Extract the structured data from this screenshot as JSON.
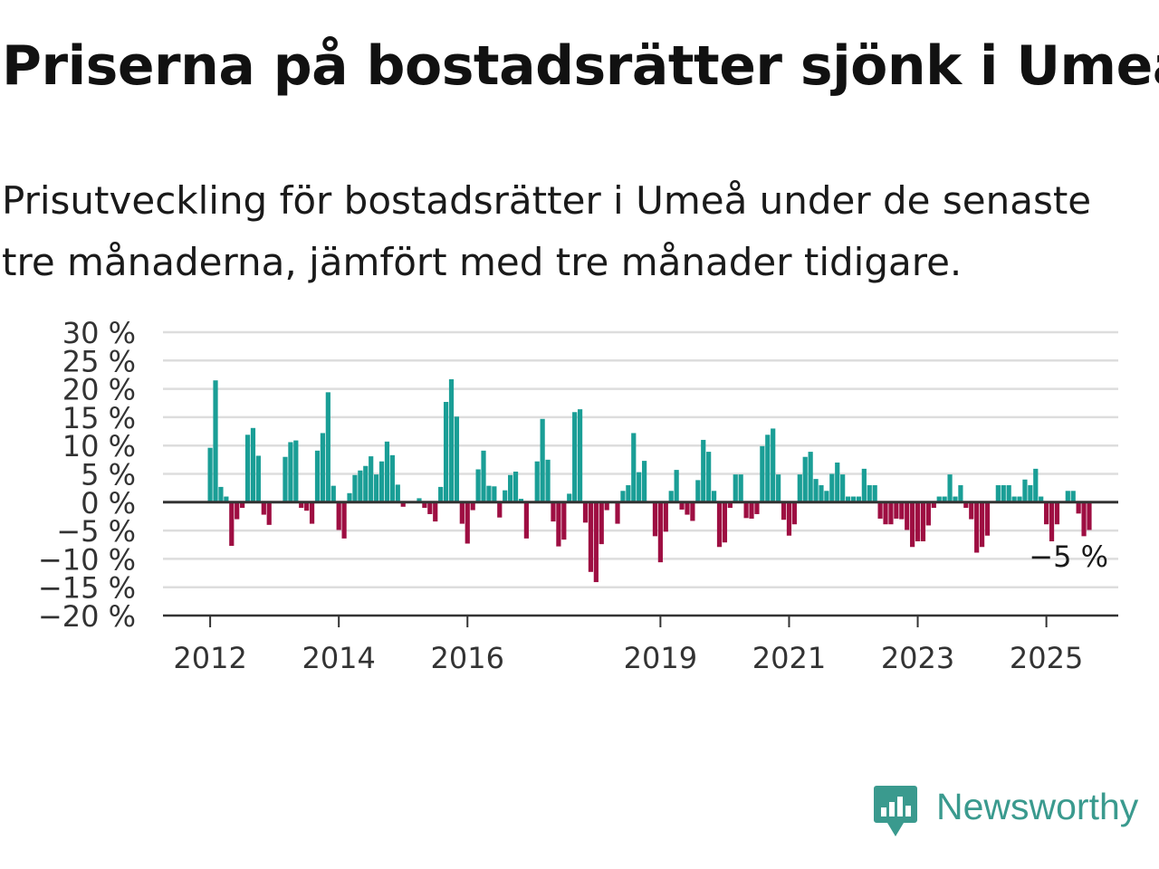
{
  "title": "Priserna på bostadsrätter sjönk i Umeå",
  "subtitle": "Prisutveckling för bostadsrätter i Umeå under de senaste tre månaderna, jämfört med tre månader tidigare.",
  "brand": "Newsworthy",
  "colors": {
    "positive": "#1a9e96",
    "negative": "#9e0e42",
    "grid": "#dddddd",
    "axis": "#333333",
    "brand": "#3a9a8e"
  },
  "chart_data": {
    "type": "bar",
    "ylim": [
      -20,
      30
    ],
    "yticks": [
      30,
      25,
      20,
      15,
      10,
      5,
      0,
      -5,
      -10,
      -15,
      -20
    ],
    "ytick_labels": [
      "30 %",
      "25 %",
      "20 %",
      "15 %",
      "10 %",
      "5 %",
      "0 %",
      "−5 %",
      "−10 %",
      "−15 %",
      "−20 %"
    ],
    "xtick_labels": [
      "2012",
      "2014",
      "2016",
      "2019",
      "2021",
      "2023",
      "2025"
    ],
    "xtick_index": [
      0,
      24,
      48,
      84,
      108,
      132,
      156
    ],
    "annotation": "−5 %",
    "grid": true,
    "start": "2012-01",
    "frequency": "monthly",
    "values": [
      9.6,
      21.5,
      2.7,
      1.0,
      -7.7,
      -3.0,
      -1.0,
      11.9,
      13.1,
      8.2,
      -2.2,
      -4.0,
      0.0,
      0.0,
      8.0,
      10.6,
      10.9,
      -1.0,
      -1.5,
      -3.8,
      9.1,
      12.2,
      19.4,
      2.9,
      -4.9,
      -6.4,
      1.6,
      4.8,
      5.6,
      6.4,
      8.1,
      4.9,
      7.2,
      10.7,
      8.3,
      3.1,
      -0.8,
      0.0,
      0.0,
      0.7,
      -1.0,
      -2.1,
      -3.4,
      2.7,
      17.7,
      21.7,
      15.1,
      -3.8,
      -7.3,
      -1.4,
      5.8,
      9.1,
      2.9,
      2.8,
      -2.7,
      2.1,
      4.8,
      5.4,
      0.6,
      -6.4,
      0.0,
      7.2,
      14.7,
      7.5,
      -3.4,
      -7.8,
      -6.6,
      1.5,
      15.9,
      16.4,
      -3.6,
      -12.3,
      -14.1,
      -7.4,
      -1.4,
      0.0,
      -3.8,
      2.0,
      3.0,
      12.2,
      5.3,
      7.3,
      0.0,
      -6.0,
      -10.6,
      -5.2,
      2.0,
      5.7,
      -1.3,
      -2.2,
      -3.3,
      3.9,
      11.0,
      8.9,
      2.0,
      -7.9,
      -7.1,
      -1.0,
      4.9,
      4.9,
      -2.8,
      -2.9,
      -2.1,
      9.9,
      11.9,
      13.0,
      4.9,
      -3.1,
      -5.9,
      -3.9,
      4.9,
      8.0,
      8.9,
      4.1,
      3.0,
      2.0,
      5.0,
      7.0,
      4.9,
      1.0,
      1.0,
      1.0,
      5.9,
      3.0,
      3.0,
      -2.9,
      -3.9,
      -3.9,
      -2.9,
      -3.0,
      -4.9,
      -7.9,
      -6.9,
      -6.9,
      -4.1,
      -1.0,
      1.0,
      1.0,
      4.9,
      1.0,
      3.0,
      -1.0,
      -3.0,
      -8.9,
      -7.9,
      -5.9,
      0.0,
      3.0,
      3.0,
      3.0,
      1.0,
      1.0,
      4.0,
      3.0,
      5.9,
      1.0,
      -3.9,
      -6.9,
      -3.9,
      0.0,
      2.0,
      2.0,
      -2.0,
      -6.0,
      -4.9
    ]
  }
}
